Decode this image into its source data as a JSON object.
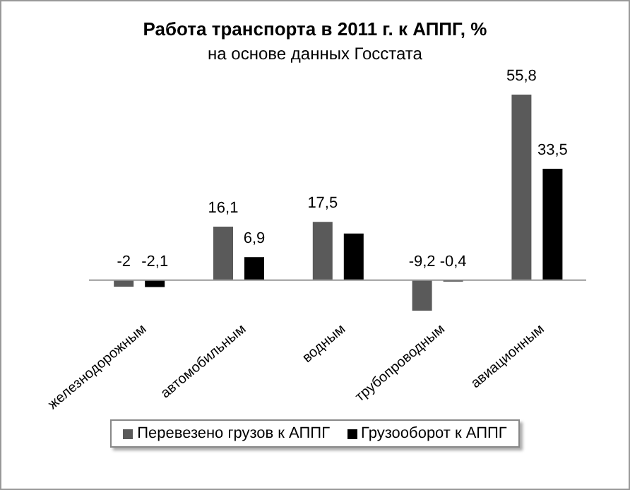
{
  "chart_data": {
    "type": "bar",
    "title": "Работа транспорта в 2011 г. к АППГ, %",
    "subtitle": "на основе данных Госстата",
    "categories": [
      "железнодорожным",
      "автомобильным",
      "водным",
      "трубопроводным",
      "авиационным"
    ],
    "series": [
      {
        "name": "Перевезено грузов к АППГ",
        "color": "#5a5a5a",
        "values": [
          -2,
          16.1,
          17.5,
          -9.2,
          55.8
        ],
        "value_labels": [
          "-2",
          "16,1",
          "17,5",
          "-9,2",
          "55,8"
        ]
      },
      {
        "name": "Грузооборот к АППГ",
        "color": "#000000",
        "values": [
          -2.1,
          6.9,
          14,
          -0.4,
          33.5
        ],
        "value_labels": [
          "-2,1",
          "6,9",
          null,
          "-0,4",
          "33,5"
        ]
      }
    ],
    "legend": "bottom",
    "grid": false
  }
}
